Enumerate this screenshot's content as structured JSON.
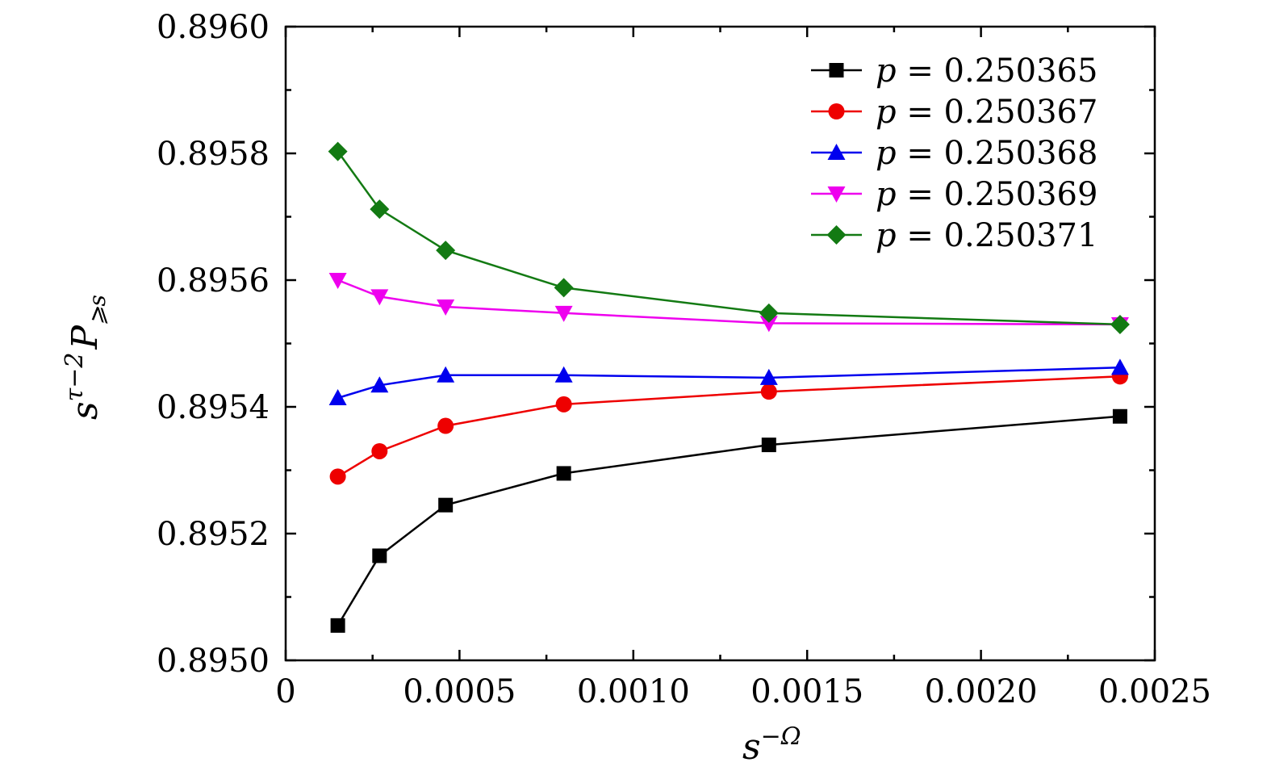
{
  "chart_data": {
    "type": "line",
    "title": "",
    "xlabel": {
      "base": "s",
      "sup": "−Ω"
    },
    "ylabel": {
      "base": "s",
      "sup": "τ−2",
      "main": "P",
      "sub": "⩾s"
    },
    "xlim": [
      0,
      0.0025
    ],
    "ylim": [
      0.895,
      0.896
    ],
    "x_ticks": [
      0,
      0.0005,
      0.001,
      0.0015,
      0.002,
      0.0025
    ],
    "x_tick_labels": [
      "0",
      "0.0005",
      "0.0010",
      "0.0015",
      "0.0020",
      "0.0025"
    ],
    "y_ticks": [
      0.895,
      0.8952,
      0.8954,
      0.8956,
      0.8958,
      0.896
    ],
    "y_tick_labels": [
      "0.8950",
      "0.8952",
      "0.8954",
      "0.8956",
      "0.8958",
      "0.8960"
    ],
    "grid": false,
    "legend_position": "top-right",
    "x": [
      0.00015,
      0.00027,
      0.00046,
      0.0008,
      0.00139,
      0.0024
    ],
    "series": [
      {
        "name": "p = 0.250365",
        "p_value": "0.250365",
        "color": "#000000",
        "marker": "square",
        "values": [
          0.895055,
          0.895165,
          0.895245,
          0.895295,
          0.89534,
          0.895385
        ]
      },
      {
        "name": "p = 0.250367",
        "p_value": "0.250367",
        "color": "#ee0000",
        "marker": "circle",
        "values": [
          0.89529,
          0.89533,
          0.89537,
          0.895404,
          0.895424,
          0.895448
        ]
      },
      {
        "name": "p = 0.250368",
        "p_value": "0.250368",
        "color": "#0000ee",
        "marker": "triangle-up",
        "values": [
          0.895414,
          0.895434,
          0.89545,
          0.89545,
          0.895446,
          0.895462
        ]
      },
      {
        "name": "p = 0.250369",
        "p_value": "0.250369",
        "color": "#ee00ee",
        "marker": "triangle-down",
        "values": [
          0.8956,
          0.895574,
          0.895558,
          0.895548,
          0.895532,
          0.89553
        ]
      },
      {
        "name": "p = 0.250371",
        "p_value": "0.250371",
        "color": "#137a13",
        "marker": "diamond",
        "values": [
          0.895803,
          0.895712,
          0.895647,
          0.895588,
          0.895548,
          0.89553
        ]
      }
    ]
  }
}
